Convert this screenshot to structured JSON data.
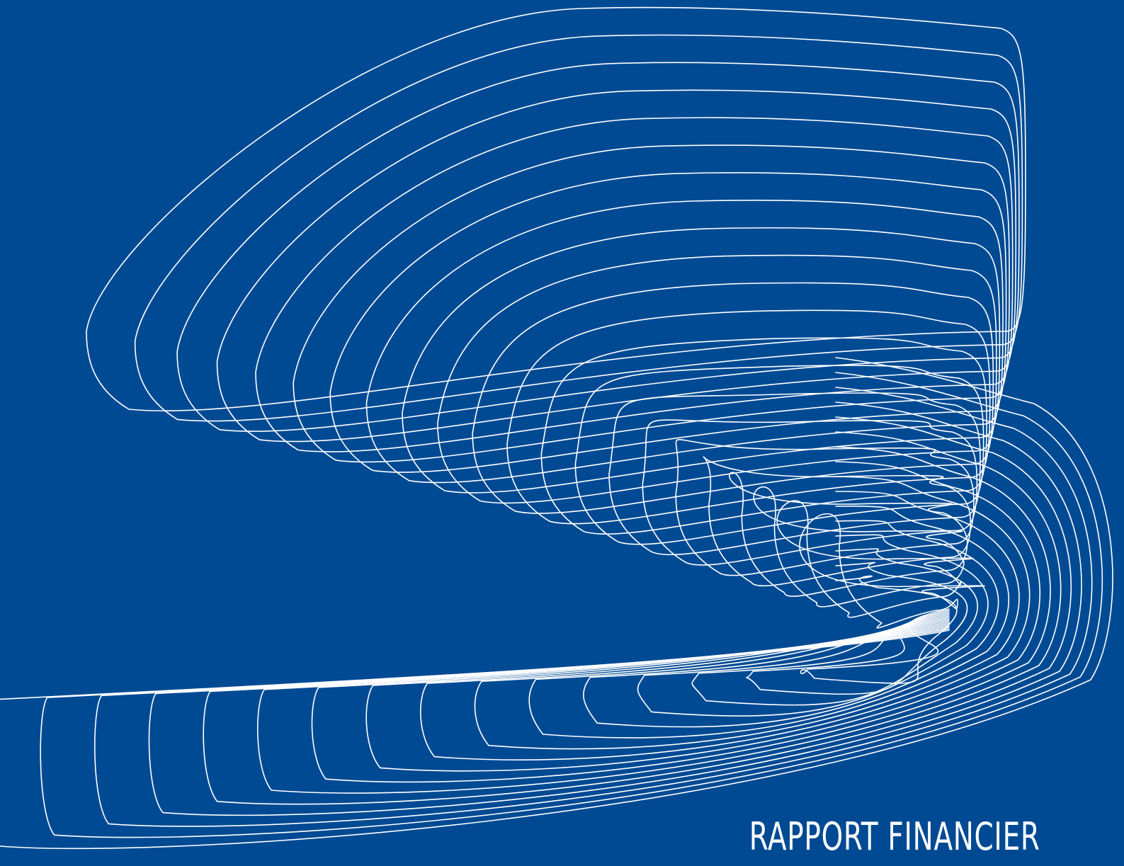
{
  "cover": {
    "title": "RAPPORT FINANCIER",
    "background_color": "#004a94",
    "line_color": "#ffffff",
    "graphic": "spiral-wireframe-ribbon"
  }
}
